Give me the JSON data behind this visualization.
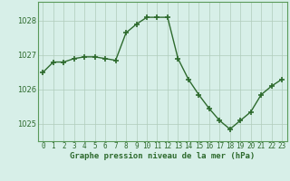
{
  "x": [
    0,
    1,
    2,
    3,
    4,
    5,
    6,
    7,
    8,
    9,
    10,
    11,
    12,
    13,
    14,
    15,
    16,
    17,
    18,
    19,
    20,
    21,
    22,
    23
  ],
  "y": [
    1026.5,
    1026.8,
    1026.8,
    1026.9,
    1026.95,
    1026.95,
    1026.9,
    1026.85,
    1027.65,
    1027.9,
    1028.1,
    1028.1,
    1028.1,
    1026.9,
    1026.3,
    1025.85,
    1025.45,
    1025.1,
    1024.85,
    1025.1,
    1025.35,
    1025.85,
    1026.1,
    1026.3
  ],
  "line_color": "#2d6a2d",
  "marker": "+",
  "marker_size": 5,
  "background_color": "#d7efe8",
  "grid_color": "#b0ccbb",
  "ylabel_ticks": [
    1025,
    1026,
    1027,
    1028
  ],
  "xlabel_label": "Graphe pression niveau de la mer (hPa)",
  "ylim": [
    1024.5,
    1028.55
  ],
  "xlim": [
    -0.5,
    23.5
  ],
  "tick_labels": [
    "0",
    "1",
    "2",
    "3",
    "4",
    "5",
    "6",
    "7",
    "8",
    "9",
    "10",
    "11",
    "12",
    "13",
    "14",
    "15",
    "16",
    "17",
    "18",
    "19",
    "20",
    "21",
    "22",
    "23"
  ],
  "xlabel_fontsize": 6.5,
  "ylabel_fontsize": 6,
  "tick_fontsize": 5.5,
  "line_width": 1.0,
  "border_color": "#5a9a5a"
}
